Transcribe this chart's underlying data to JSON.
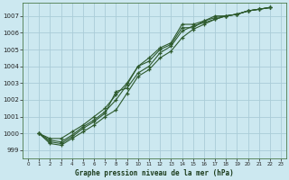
{
  "title": "Graphe pression niveau de la mer (hPa)",
  "background_color": "#cce8f0",
  "grid_color": "#aaccd8",
  "line_color": "#2d5a2d",
  "xlim": [
    -0.5,
    23.5
  ],
  "ylim": [
    998.5,
    1007.8
  ],
  "yticks": [
    999,
    1000,
    1001,
    1002,
    1003,
    1004,
    1005,
    1006,
    1007
  ],
  "xticks": [
    0,
    1,
    2,
    3,
    4,
    5,
    6,
    7,
    8,
    9,
    10,
    11,
    12,
    13,
    14,
    15,
    16,
    17,
    18,
    19,
    20,
    21,
    22,
    23
  ],
  "series": [
    [
      0,
      1000.0,
      999.7,
      999.7,
      1000.1,
      1000.5,
      1001.0,
      1001.5,
      1002.3,
      1003.0,
      1004.0,
      1004.5,
      1005.1,
      1005.4,
      1006.5,
      1006.5,
      1006.7,
      1007.0,
      1007.0,
      1007.1,
      1007.3,
      1007.4,
      1007.5
    ],
    [
      0,
      1000.0,
      999.5,
      999.4,
      999.8,
      1000.3,
      1000.7,
      1001.2,
      1002.5,
      1002.7,
      1003.6,
      1004.0,
      1004.8,
      1005.2,
      1006.1,
      1006.4,
      1006.6,
      1006.8,
      1007.0,
      1007.1,
      1007.3,
      1007.4,
      1007.5
    ],
    [
      0,
      1000.0,
      999.4,
      999.3,
      999.7,
      1000.1,
      1000.5,
      1001.0,
      1001.4,
      1002.4,
      1003.4,
      1003.8,
      1004.5,
      1004.9,
      1005.7,
      1006.2,
      1006.5,
      1006.8,
      1007.0,
      1007.1,
      1007.3,
      1007.4,
      1007.5
    ],
    [
      0,
      1000.0,
      999.6,
      999.5,
      999.9,
      1000.4,
      1000.8,
      1001.3,
      1002.0,
      1002.9,
      1004.0,
      1004.3,
      1005.0,
      1005.3,
      1006.3,
      1006.3,
      1006.7,
      1006.9,
      1007.0,
      1007.1,
      1007.3,
      1007.4,
      1007.5
    ]
  ],
  "x_start": 1
}
